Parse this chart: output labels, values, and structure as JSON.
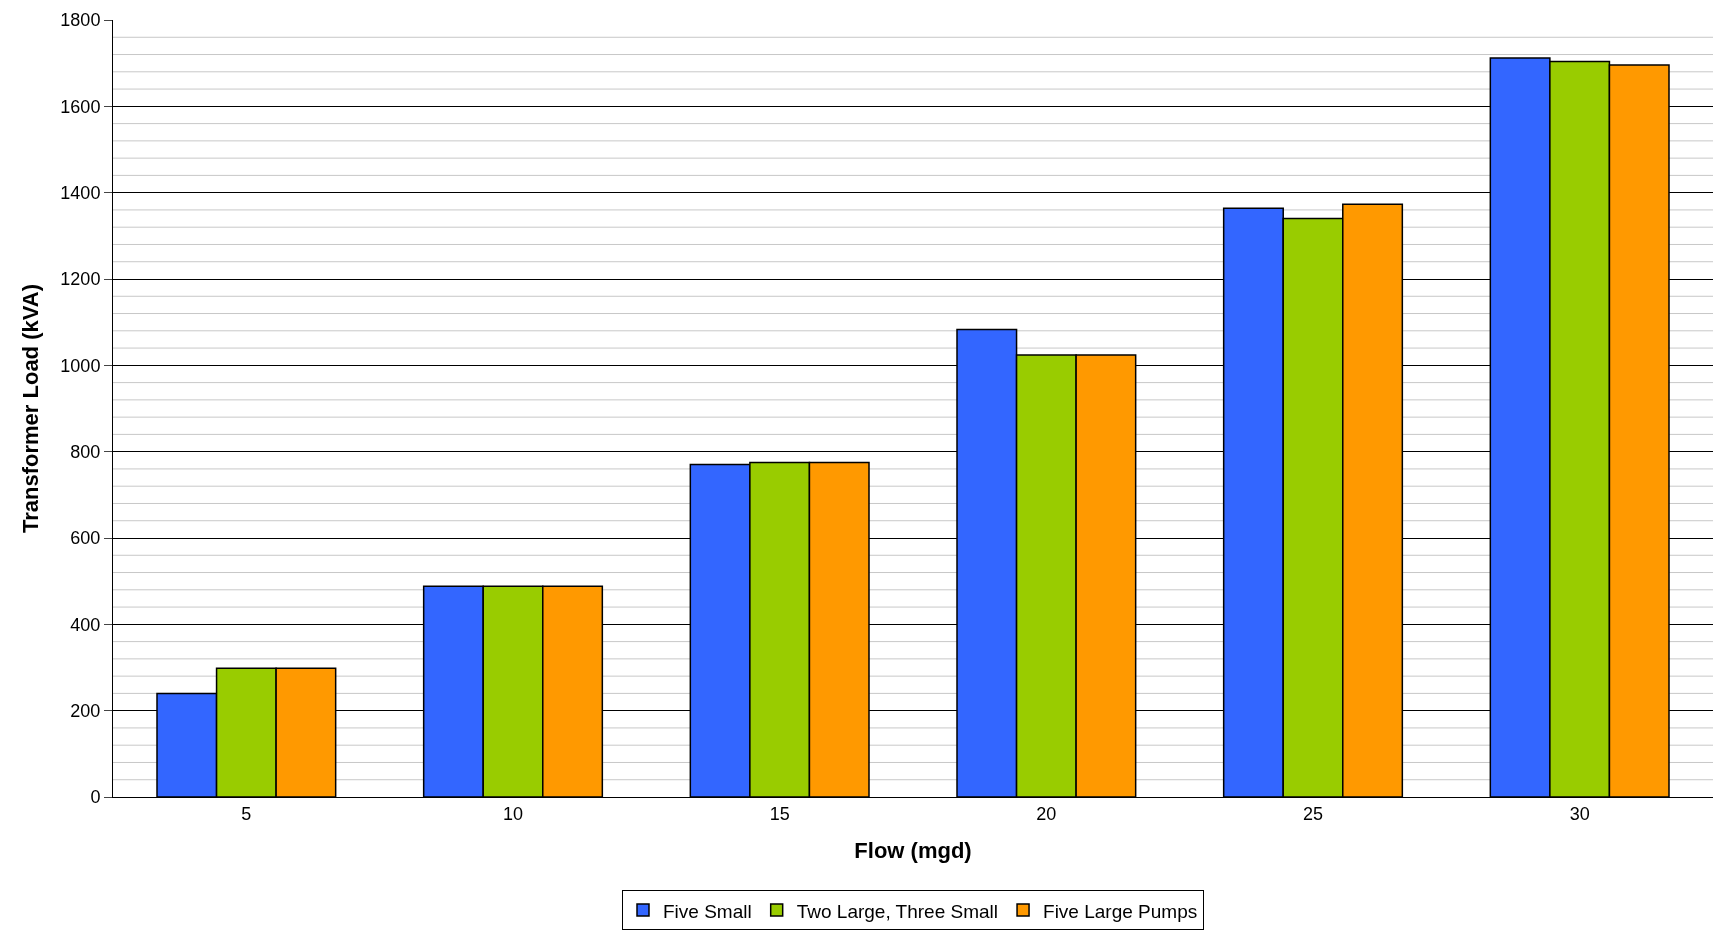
{
  "chart_data": {
    "type": "bar",
    "xlabel": "Flow (mgd)",
    "ylabel": "Transformer Load (kVA)",
    "categories": [
      "5",
      "10",
      "15",
      "20",
      "25",
      "30"
    ],
    "series": [
      {
        "name": "Five Small",
        "color": "#3366ff",
        "values": [
          240,
          488,
          770,
          1083,
          1364,
          1712
        ]
      },
      {
        "name": "Two Large, Three Small",
        "color": "#99cc00",
        "values": [
          298,
          488,
          775,
          1024,
          1340,
          1704
        ]
      },
      {
        "name": "Five Large Pumps",
        "color": "#ff9900",
        "values": [
          298,
          488,
          775,
          1024,
          1373,
          1696
        ]
      }
    ],
    "ylim": [
      0,
      1800
    ],
    "yticks": [
      0,
      200,
      400,
      600,
      800,
      1000,
      1200,
      1400,
      1600,
      1800
    ],
    "grid": "y",
    "legend": "bottom"
  }
}
